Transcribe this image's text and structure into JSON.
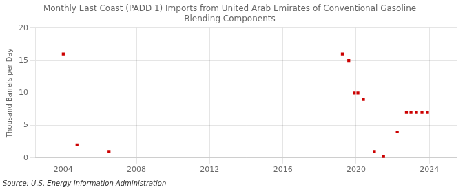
{
  "chart_data": {
    "type": "scatter",
    "title": "Monthly East Coast (PADD 1) Imports from United Arab Emirates of Conventional Gasoline\nBlending Components",
    "ylabel": "Thousand Barrels per Day",
    "annotation": "Source: U.S. Energy Information Administration",
    "x": [
      2004.0,
      2004.75,
      2006.5,
      2019.25,
      2019.6,
      2019.9,
      2020.1,
      2020.4,
      2021.0,
      2021.5,
      2022.25,
      2022.75,
      2023.0,
      2023.3,
      2023.6,
      2023.9
    ],
    "values": [
      16,
      2,
      1,
      16,
      15,
      10,
      10,
      9,
      1,
      0.2,
      4,
      7,
      7,
      7,
      7,
      7
    ],
    "color": "#cc0000",
    "marker": "square",
    "xlim": [
      2002.5,
      2025.5
    ],
    "ylim": [
      0,
      20
    ],
    "xticks": [
      2004,
      2008,
      2012,
      2016,
      2020,
      2024
    ],
    "yticks": [
      0,
      5,
      10,
      15,
      20
    ],
    "grid": true
  }
}
